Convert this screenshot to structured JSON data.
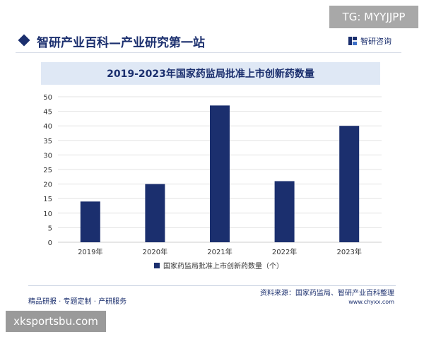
{
  "tg_badge": "TG: MYYJJPP",
  "header": {
    "site_title": "智研产业百科—产业研究第一站",
    "brand": "智研咨询"
  },
  "footer": {
    "left": "精品研报 · 专题定制 · 产研服务",
    "source": "资料来源：国家药监局、智研产业百科整理",
    "url": "www.chyxx.com"
  },
  "watermark": "xksportsbu.com",
  "colors": {
    "bar": "#1b2f6e",
    "grid": "#e3e3e3",
    "title_band": "#dfe8f5"
  },
  "chart_data": {
    "type": "bar",
    "title": "2019-2023年国家药监局批准上市创新药数量",
    "categories": [
      "2019年",
      "2020年",
      "2021年",
      "2022年",
      "2023年"
    ],
    "series": [
      {
        "name": "国家药监局批准上市创新药数量（个）",
        "values": [
          14,
          20,
          47,
          21,
          40
        ]
      }
    ],
    "y_ticks": [
      0,
      5,
      10,
      15,
      20,
      25,
      30,
      35,
      40,
      45,
      50
    ],
    "ylim": [
      0,
      50
    ],
    "grid": true,
    "legend_position": "bottom-center"
  }
}
